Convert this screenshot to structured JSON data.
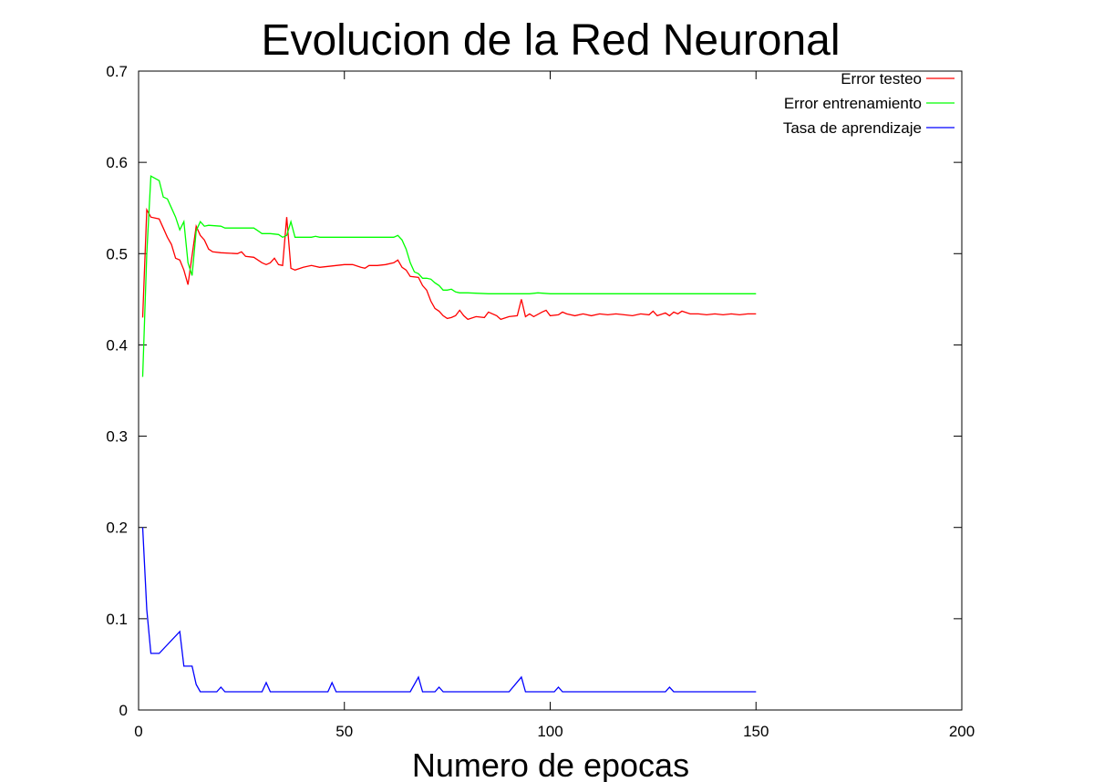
{
  "chart_data": {
    "type": "line",
    "title": "Evolucion de la Red Neuronal",
    "xlabel": "Numero de epocas",
    "ylabel": "",
    "xlim": [
      0,
      200
    ],
    "ylim": [
      0,
      0.7
    ],
    "xticks": [
      0,
      50,
      100,
      150,
      200
    ],
    "yticks": [
      0,
      0.1,
      0.2,
      0.3,
      0.4,
      0.5,
      0.6,
      0.7
    ],
    "xtick_labels": [
      "0",
      "50",
      "100",
      "150",
      "200"
    ],
    "ytick_labels": [
      "0",
      "0.1",
      "0.2",
      "0.3",
      "0.4",
      "0.5",
      "0.6",
      "0.7"
    ],
    "grid": false,
    "legend_position": "top-right",
    "series": [
      {
        "name": "Error testeo",
        "color": "#ff0000",
        "points": [
          [
            1,
            0.43
          ],
          [
            2,
            0.548
          ],
          [
            3,
            0.54
          ],
          [
            5,
            0.538
          ],
          [
            6,
            0.528
          ],
          [
            7,
            0.518
          ],
          [
            8,
            0.51
          ],
          [
            9,
            0.495
          ],
          [
            10,
            0.493
          ],
          [
            11,
            0.482
          ],
          [
            12,
            0.466
          ],
          [
            13,
            0.498
          ],
          [
            14,
            0.53
          ],
          [
            15,
            0.52
          ],
          [
            16,
            0.515
          ],
          [
            17,
            0.505
          ],
          [
            18,
            0.502
          ],
          [
            20,
            0.501
          ],
          [
            24,
            0.5
          ],
          [
            25,
            0.502
          ],
          [
            26,
            0.497
          ],
          [
            28,
            0.496
          ],
          [
            30,
            0.49
          ],
          [
            31,
            0.488
          ],
          [
            32,
            0.49
          ],
          [
            33,
            0.495
          ],
          [
            34,
            0.488
          ],
          [
            35,
            0.487
          ],
          [
            36,
            0.54
          ],
          [
            37,
            0.484
          ],
          [
            38,
            0.482
          ],
          [
            40,
            0.485
          ],
          [
            42,
            0.487
          ],
          [
            44,
            0.485
          ],
          [
            46,
            0.486
          ],
          [
            48,
            0.487
          ],
          [
            50,
            0.488
          ],
          [
            52,
            0.488
          ],
          [
            54,
            0.485
          ],
          [
            55,
            0.484
          ],
          [
            56,
            0.487
          ],
          [
            58,
            0.487
          ],
          [
            60,
            0.488
          ],
          [
            62,
            0.49
          ],
          [
            63,
            0.493
          ],
          [
            64,
            0.485
          ],
          [
            65,
            0.482
          ],
          [
            66,
            0.475
          ],
          [
            68,
            0.474
          ],
          [
            69,
            0.465
          ],
          [
            70,
            0.46
          ],
          [
            71,
            0.448
          ],
          [
            72,
            0.44
          ],
          [
            73,
            0.437
          ],
          [
            74,
            0.432
          ],
          [
            75,
            0.429
          ],
          [
            76,
            0.43
          ],
          [
            77,
            0.432
          ],
          [
            78,
            0.438
          ],
          [
            79,
            0.432
          ],
          [
            80,
            0.428
          ],
          [
            82,
            0.431
          ],
          [
            84,
            0.43
          ],
          [
            85,
            0.436
          ],
          [
            87,
            0.432
          ],
          [
            88,
            0.428
          ],
          [
            90,
            0.431
          ],
          [
            92,
            0.432
          ],
          [
            93,
            0.45
          ],
          [
            94,
            0.431
          ],
          [
            95,
            0.434
          ],
          [
            96,
            0.431
          ],
          [
            98,
            0.436
          ],
          [
            99,
            0.438
          ],
          [
            100,
            0.432
          ],
          [
            102,
            0.433
          ],
          [
            103,
            0.436
          ],
          [
            104,
            0.434
          ],
          [
            106,
            0.432
          ],
          [
            108,
            0.434
          ],
          [
            110,
            0.432
          ],
          [
            112,
            0.434
          ],
          [
            114,
            0.433
          ],
          [
            116,
            0.434
          ],
          [
            118,
            0.433
          ],
          [
            120,
            0.432
          ],
          [
            122,
            0.434
          ],
          [
            124,
            0.433
          ],
          [
            125,
            0.437
          ],
          [
            126,
            0.432
          ],
          [
            128,
            0.435
          ],
          [
            129,
            0.432
          ],
          [
            130,
            0.436
          ],
          [
            131,
            0.434
          ],
          [
            132,
            0.437
          ],
          [
            134,
            0.434
          ],
          [
            136,
            0.434
          ],
          [
            138,
            0.433
          ],
          [
            140,
            0.434
          ],
          [
            142,
            0.433
          ],
          [
            144,
            0.434
          ],
          [
            146,
            0.433
          ],
          [
            148,
            0.434
          ],
          [
            150,
            0.434
          ]
        ]
      },
      {
        "name": "Error entrenamiento",
        "color": "#00ff00",
        "points": [
          [
            1,
            0.365
          ],
          [
            2,
            0.5
          ],
          [
            3,
            0.585
          ],
          [
            5,
            0.58
          ],
          [
            6,
            0.562
          ],
          [
            7,
            0.56
          ],
          [
            8,
            0.55
          ],
          [
            9,
            0.54
          ],
          [
            10,
            0.526
          ],
          [
            11,
            0.535
          ],
          [
            12,
            0.49
          ],
          [
            13,
            0.476
          ],
          [
            14,
            0.525
          ],
          [
            15,
            0.535
          ],
          [
            16,
            0.53
          ],
          [
            17,
            0.531
          ],
          [
            20,
            0.53
          ],
          [
            21,
            0.528
          ],
          [
            24,
            0.528
          ],
          [
            26,
            0.528
          ],
          [
            28,
            0.528
          ],
          [
            29,
            0.525
          ],
          [
            30,
            0.522
          ],
          [
            32,
            0.522
          ],
          [
            34,
            0.521
          ],
          [
            35,
            0.518
          ],
          [
            36,
            0.52
          ],
          [
            37,
            0.535
          ],
          [
            38,
            0.518
          ],
          [
            40,
            0.518
          ],
          [
            42,
            0.518
          ],
          [
            43,
            0.519
          ],
          [
            44,
            0.518
          ],
          [
            46,
            0.518
          ],
          [
            48,
            0.518
          ],
          [
            50,
            0.518
          ],
          [
            52,
            0.518
          ],
          [
            55,
            0.518
          ],
          [
            58,
            0.518
          ],
          [
            60,
            0.518
          ],
          [
            62,
            0.518
          ],
          [
            63,
            0.52
          ],
          [
            64,
            0.515
          ],
          [
            65,
            0.505
          ],
          [
            66,
            0.49
          ],
          [
            67,
            0.48
          ],
          [
            68,
            0.478
          ],
          [
            69,
            0.473
          ],
          [
            70,
            0.473
          ],
          [
            71,
            0.472
          ],
          [
            72,
            0.468
          ],
          [
            73,
            0.465
          ],
          [
            74,
            0.46
          ],
          [
            75,
            0.46
          ],
          [
            76,
            0.461
          ],
          [
            77,
            0.458
          ],
          [
            78,
            0.457
          ],
          [
            80,
            0.457
          ],
          [
            85,
            0.456
          ],
          [
            90,
            0.456
          ],
          [
            95,
            0.456
          ],
          [
            97,
            0.457
          ],
          [
            100,
            0.456
          ],
          [
            110,
            0.456
          ],
          [
            120,
            0.456
          ],
          [
            130,
            0.456
          ],
          [
            140,
            0.456
          ],
          [
            150,
            0.456
          ]
        ]
      },
      {
        "name": "Tasa de aprendizaje",
        "color": "#0000ff",
        "points": [
          [
            1,
            0.2
          ],
          [
            2,
            0.11
          ],
          [
            3,
            0.062
          ],
          [
            5,
            0.062
          ],
          [
            10,
            0.086
          ],
          [
            11,
            0.048
          ],
          [
            13,
            0.048
          ],
          [
            14,
            0.028
          ],
          [
            15,
            0.02
          ],
          [
            19,
            0.02
          ],
          [
            20,
            0.025
          ],
          [
            21,
            0.02
          ],
          [
            30,
            0.02
          ],
          [
            31,
            0.03
          ],
          [
            32,
            0.02
          ],
          [
            46,
            0.02
          ],
          [
            47,
            0.03
          ],
          [
            48,
            0.02
          ],
          [
            66,
            0.02
          ],
          [
            68,
            0.036
          ],
          [
            69,
            0.02
          ],
          [
            72,
            0.02
          ],
          [
            73,
            0.025
          ],
          [
            74,
            0.02
          ],
          [
            90,
            0.02
          ],
          [
            93,
            0.036
          ],
          [
            94,
            0.02
          ],
          [
            101,
            0.02
          ],
          [
            102,
            0.025
          ],
          [
            103,
            0.02
          ],
          [
            128,
            0.02
          ],
          [
            129,
            0.025
          ],
          [
            130,
            0.02
          ],
          [
            150,
            0.02
          ]
        ]
      }
    ]
  }
}
